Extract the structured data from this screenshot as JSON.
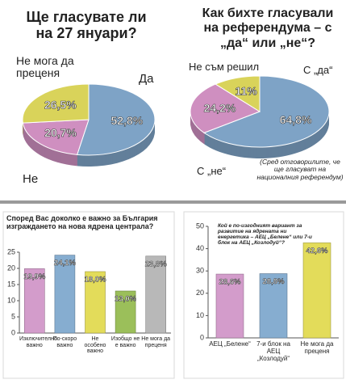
{
  "chart_data": [
    {
      "type": "pie",
      "title": "Ще гласувате ли на 27 януари?",
      "categories": [
        "Да",
        "Не",
        "Не мога да преценя"
      ],
      "values": [
        52.8,
        20.7,
        26.5
      ],
      "value_labels": [
        "52,8%",
        "20,7%",
        "26,5%"
      ],
      "colors": [
        "#7ea3c6",
        "#cf8fc0",
        "#d9d35a"
      ]
    },
    {
      "type": "pie",
      "title": "Как бихте гласували на референдума – с „да“ или „не“?",
      "categories": [
        "С „да“",
        "С „не“",
        "Не съм решил"
      ],
      "values": [
        64.8,
        24.2,
        11
      ],
      "value_labels": [
        "64,8%",
        "24,2%",
        "11%"
      ],
      "colors": [
        "#7ea3c6",
        "#cf8fc0",
        "#d9d35a"
      ],
      "note": "(Сред отговорилите, че ще гласуват на националния референдум)"
    },
    {
      "type": "bar",
      "title": "Според Вас доколко е важно за България изграждането на нова ядрена централа?",
      "categories": [
        "Изключително важно",
        "По-скоро важно",
        "Не особено важно",
        "Изобщо не е важно",
        "Не мога да преценя"
      ],
      "values": [
        19.9,
        24.1,
        19.0,
        13.0,
        23.8
      ],
      "value_labels": [
        "19,9%",
        "24,1%",
        "19,0%",
        "13,0%",
        "23,8%"
      ],
      "colors": [
        "#d39ccb",
        "#86add0",
        "#e3dc5a",
        "#9bbf5a",
        "#b8b8b8"
      ],
      "ylim": [
        0,
        25
      ],
      "yticks": [
        0,
        5,
        10,
        15,
        20,
        25
      ],
      "grid": false
    },
    {
      "type": "bar",
      "title": "Кой е по-изгодният вариант за развитие на ядрената ни енергетика – АЕЦ „Белене“ или 7-и блок на АЕЦ „Козлодуй“?",
      "categories": [
        "АЕЦ „Белене“",
        "7-и блок на АЕЦ „Козлодуй“",
        "Не мога да преценя"
      ],
      "values": [
        28.6,
        28.8,
        42.6
      ],
      "value_labels": [
        "28,6%",
        "28,8%",
        "42,6%"
      ],
      "colors": [
        "#d39ccb",
        "#86add0",
        "#e3dc5a"
      ],
      "ylim": [
        0,
        50
      ],
      "yticks": [
        0,
        10,
        20,
        30,
        40,
        50
      ],
      "grid": false
    }
  ]
}
